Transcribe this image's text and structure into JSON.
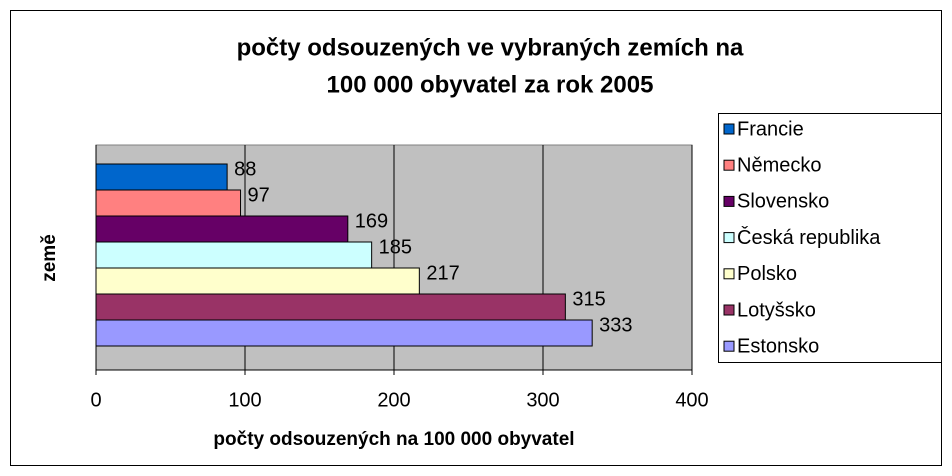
{
  "chart_data": {
    "type": "hbar",
    "title": [
      "počty odsouzených ve vybraných zemích na",
      "100 000 obyvatel za rok 2005"
    ],
    "xlabel": "počty odsouzených na 100 000 obyvatel",
    "ylabel": "země",
    "series": [
      {
        "name": "Francie",
        "color": "#0066cc",
        "values": [
          88
        ]
      },
      {
        "name": "Německo",
        "color": "#ff8080",
        "values": [
          97
        ]
      },
      {
        "name": "Slovensko",
        "color": "#660066",
        "values": [
          169
        ]
      },
      {
        "name": "Česká republika",
        "color": "#ccffff",
        "values": [
          185
        ]
      },
      {
        "name": "Polsko",
        "color": "#ffffcc",
        "values": [
          217
        ]
      },
      {
        "name": "Lotyšsko",
        "color": "#993366",
        "values": [
          315
        ]
      },
      {
        "name": "Estonsko",
        "color": "#9999ff",
        "values": [
          333
        ]
      }
    ],
    "xlim": [
      0,
      400
    ],
    "xticks": [
      0,
      100,
      200,
      300,
      400
    ],
    "grid": true,
    "legend": "right"
  }
}
